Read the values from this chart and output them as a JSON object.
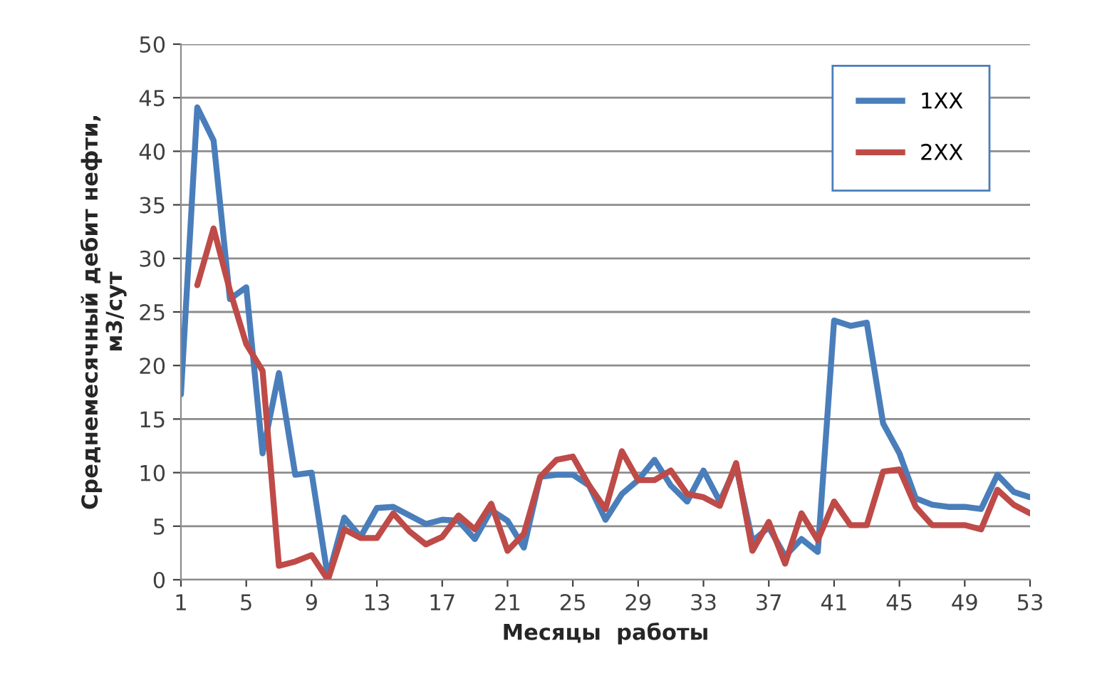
{
  "chart_data": {
    "type": "line",
    "xlabel": "Месяцы  работы",
    "ylabel": "Среднемесячный дебит нефти,\nм3/сут",
    "x": [
      1,
      2,
      3,
      4,
      5,
      6,
      7,
      8,
      9,
      10,
      11,
      12,
      13,
      14,
      15,
      16,
      17,
      18,
      19,
      20,
      21,
      22,
      23,
      24,
      25,
      26,
      27,
      28,
      29,
      30,
      31,
      32,
      33,
      34,
      35,
      36,
      37,
      38,
      39,
      40,
      41,
      42,
      43,
      44,
      45,
      46,
      47,
      48,
      49,
      50,
      51,
      52,
      53
    ],
    "series": [
      {
        "name": "1ХХ",
        "color": "#4a7ebb",
        "values": [
          17.3,
          44.1,
          41,
          26.2,
          27.3,
          11.8,
          19.3,
          9.8,
          10,
          0.2,
          5.8,
          4,
          6.7,
          6.8,
          6,
          5.2,
          5.6,
          5.5,
          3.8,
          6.5,
          5.5,
          3,
          9.6,
          9.8,
          9.8,
          8.8,
          5.6,
          8,
          9.3,
          11.2,
          8.8,
          7.3,
          10.2,
          7.3,
          10.6,
          3.6,
          4.9,
          2.2,
          3.8,
          2.6,
          24.2,
          23.7,
          24,
          14.6,
          11.8,
          7.6,
          7,
          6.8,
          6.8,
          6.6,
          9.8,
          8.2,
          7.7
        ]
      },
      {
        "name": "2ХХ",
        "color": "#be4b48",
        "values": [
          null,
          27.5,
          32.8,
          27,
          22,
          19.5,
          1.3,
          1.7,
          2.3,
          0,
          4.7,
          3.9,
          3.9,
          6.2,
          4.5,
          3.3,
          4,
          6,
          4.7,
          7.1,
          2.7,
          4.3,
          9.6,
          11.2,
          11.5,
          8.8,
          6.6,
          12,
          9.3,
          9.3,
          10.2,
          8,
          7.7,
          6.9,
          10.9,
          2.7,
          5.4,
          1.5,
          6.2,
          3.7,
          7.3,
          5.1,
          5.1,
          10.1,
          10.3,
          6.8,
          5.1,
          5.1,
          5.1,
          4.7,
          8.4,
          7,
          6.2
        ]
      }
    ],
    "xlim": [
      1,
      53
    ],
    "xticks": [
      1,
      5,
      9,
      13,
      17,
      21,
      25,
      29,
      33,
      37,
      41,
      45,
      49,
      53
    ],
    "ylim": [
      0,
      50
    ],
    "yticks": [
      0,
      5,
      10,
      15,
      20,
      25,
      30,
      35,
      40,
      45,
      50
    ],
    "grid": "y",
    "legend": "top right",
    "marker": "none",
    "line_style": "solid"
  }
}
